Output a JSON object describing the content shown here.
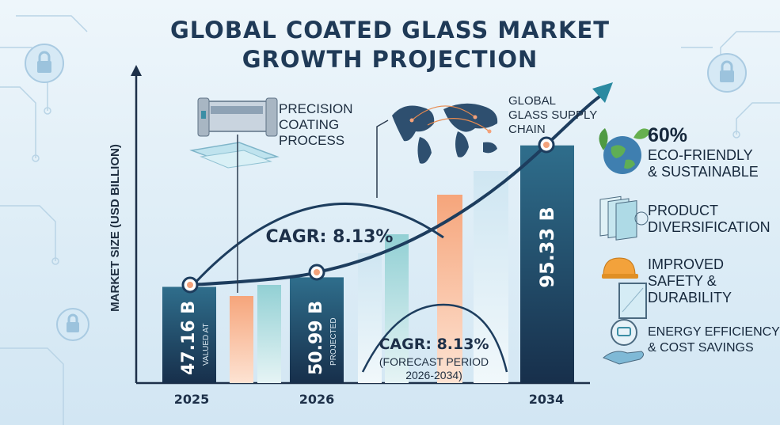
{
  "title_line1": "GLOBAL COATED GLASS MARKET",
  "title_line2": "GROWTH PROJECTION",
  "callouts": {
    "coating": [
      "PRECISION",
      "COATING",
      "PROCESS"
    ],
    "supply": [
      "GLOBAL",
      "GLASS SUPPLY",
      "CHAIN"
    ]
  },
  "features": [
    {
      "stat": "60%",
      "lines": [
        "ECO-FRIENDLY",
        "& SUSTAINABLE"
      ],
      "icon": "globe-leaf-icon"
    },
    {
      "stat": "",
      "lines": [
        "PRODUCT",
        "DIVERSIFICATION"
      ],
      "icon": "glass-layers-icon"
    },
    {
      "stat": "",
      "lines": [
        "IMPROVED",
        "SAFETY &",
        "DURABILITY"
      ],
      "icon": "hardhat-window-icon"
    },
    {
      "stat": "",
      "lines": [
        "ENERGY EFFICIENCY",
        "& COST SAVINGS"
      ],
      "icon": "hand-battery-icon"
    }
  ],
  "colors": {
    "navy": "#1d3d5e",
    "teal": "#3b8ea5",
    "peach": "#f4a27a",
    "light_teal": "#a9d9dc",
    "title": "#1f3a57"
  },
  "chart_data": {
    "type": "bar",
    "ylabel": "MARKET SIZE (USD BILLION)",
    "xlabel": "",
    "categories": [
      "2025",
      "2026",
      "2034"
    ],
    "values": [
      47.16,
      50.99,
      95.33
    ],
    "bar_labels": [
      "47.16 B",
      "50.99 B",
      "95.33 B"
    ],
    "bar_sublabels": [
      "VALUED AT",
      "PROJECTED",
      ""
    ],
    "cagr_main": "CAGR: 8.13%",
    "cagr_box_title": "CAGR: 8.13%",
    "cagr_box_lines": [
      "(FORECAST PERIOD",
      "2026-2034)"
    ],
    "trend": "up",
    "grid": false
  }
}
